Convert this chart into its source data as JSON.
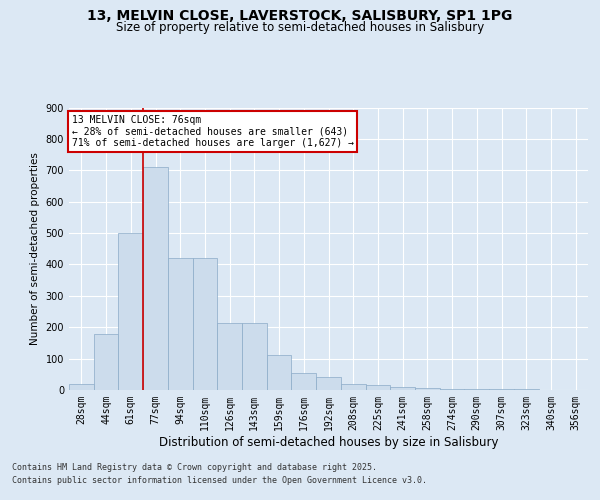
{
  "title1": "13, MELVIN CLOSE, LAVERSTOCK, SALISBURY, SP1 1PG",
  "title2": "Size of property relative to semi-detached houses in Salisbury",
  "xlabel": "Distribution of semi-detached houses by size in Salisbury",
  "ylabel": "Number of semi-detached properties",
  "categories": [
    "28sqm",
    "44sqm",
    "61sqm",
    "77sqm",
    "94sqm",
    "110sqm",
    "126sqm",
    "143sqm",
    "159sqm",
    "176sqm",
    "192sqm",
    "208sqm",
    "225sqm",
    "241sqm",
    "258sqm",
    "274sqm",
    "290sqm",
    "307sqm",
    "323sqm",
    "340sqm",
    "356sqm"
  ],
  "bar_values": [
    20,
    180,
    500,
    710,
    420,
    420,
    215,
    215,
    110,
    55,
    40,
    20,
    15,
    10,
    5,
    4,
    3,
    2,
    2,
    1,
    1
  ],
  "bar_color": "#ccdcec",
  "bar_edge_color": "#8aaac8",
  "annotation_text": "13 MELVIN CLOSE: 76sqm\n← 28% of semi-detached houses are smaller (643)\n71% of semi-detached houses are larger (1,627) →",
  "annotation_box_facecolor": "#ffffff",
  "annotation_box_edgecolor": "#cc0000",
  "background_color": "#dce8f4",
  "plot_bg_color": "#dce8f4",
  "vline_color": "#cc0000",
  "footer1": "Contains HM Land Registry data © Crown copyright and database right 2025.",
  "footer2": "Contains public sector information licensed under the Open Government Licence v3.0.",
  "ylim": [
    0,
    900
  ],
  "yticks": [
    0,
    100,
    200,
    300,
    400,
    500,
    600,
    700,
    800,
    900
  ],
  "title1_fontsize": 10,
  "title2_fontsize": 8.5,
  "ylabel_fontsize": 7.5,
  "xlabel_fontsize": 8.5,
  "tick_fontsize": 7,
  "footer_fontsize": 6,
  "annotation_fontsize": 7
}
